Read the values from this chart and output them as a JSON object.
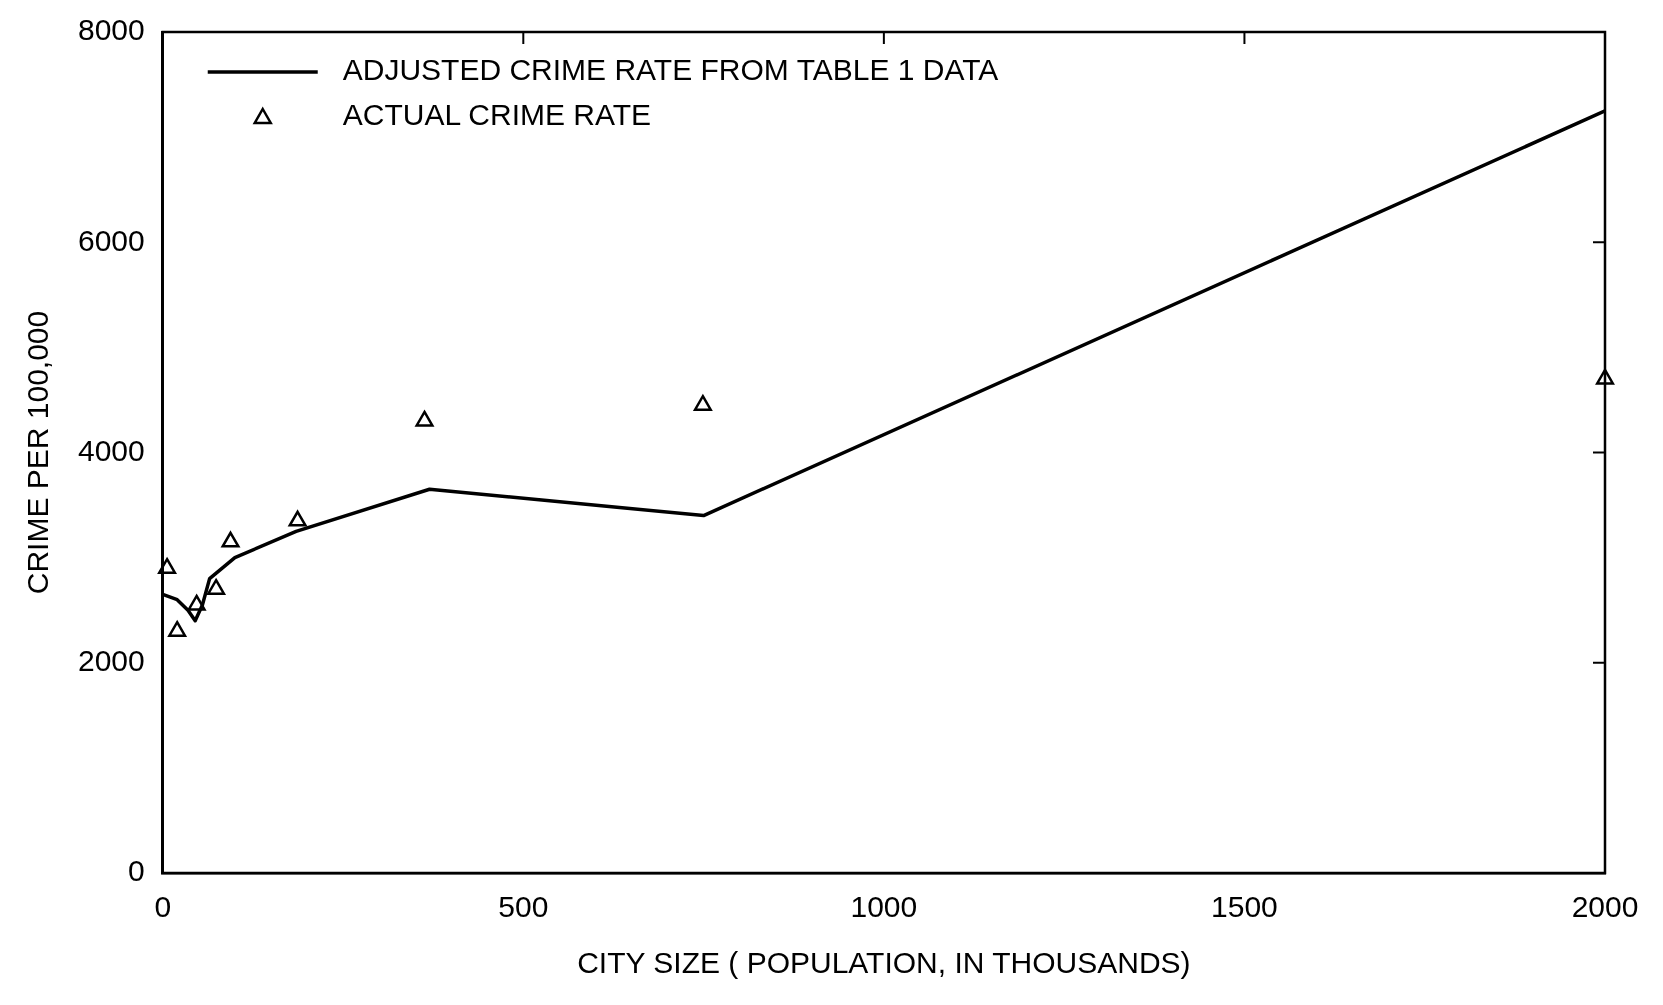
{
  "chart_data": {
    "type": "line",
    "xlabel": "CITY SIZE ( POPULATION, IN THOUSANDS)",
    "ylabel": "CRIME PER 100,000",
    "xlim": [
      0,
      2000
    ],
    "xticks": [
      0,
      500,
      1000,
      1500,
      2000
    ],
    "ylim": [
      0,
      8000
    ],
    "yticks": [
      0,
      2000,
      4000,
      6000,
      8000
    ],
    "grid": false,
    "legend": "top left",
    "series": [
      {
        "name": "ADJUSTED CRIME RATE FROM TABLE 1 DATA",
        "color": "#000000",
        "marker": "none",
        "line_style": "solid",
        "x": [
          0,
          20,
          35,
          45,
          55,
          65,
          100,
          185,
          370,
          750,
          2000
        ],
        "values": [
          2650,
          2600,
          2500,
          2400,
          2550,
          2800,
          3000,
          3250,
          3650,
          3400,
          7250
        ]
      },
      {
        "name": "ACTUAL CRIME RATE",
        "type": "scatter",
        "color": "#000000",
        "marker": "triangle",
        "x": [
          6,
          20,
          47,
          74,
          94,
          187,
          363,
          749,
          2000
        ],
        "values": [
          2900,
          2300,
          2550,
          2700,
          3150,
          3350,
          4300,
          4450,
          4700
        ]
      }
    ]
  }
}
